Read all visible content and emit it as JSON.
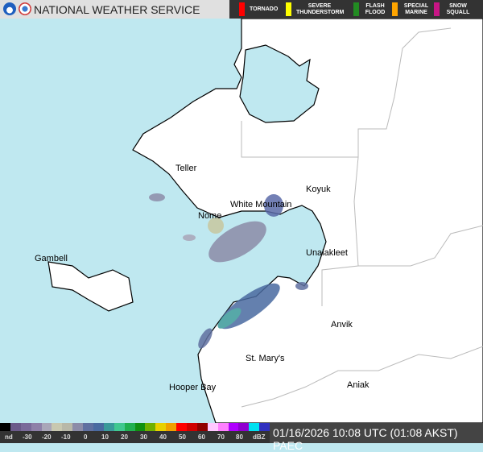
{
  "header": {
    "title": "NATIONAL WEATHER SERVICE",
    "logos": [
      "noaa-logo",
      "nws-logo"
    ]
  },
  "warning_legend": [
    {
      "label": "TORNADO",
      "color": "#ff0000"
    },
    {
      "label": "SEVERE THUNDERSTORM",
      "color": "#ffff00"
    },
    {
      "label": "FLASH FLOOD",
      "color": "#228b22"
    },
    {
      "label": "SPECIAL MARINE",
      "color": "#ffa500"
    },
    {
      "label": "SNOW SQUALL",
      "color": "#c71585"
    }
  ],
  "colors": {
    "ocean": "#bfe8f0",
    "land": "#ffffff"
  },
  "cities": [
    "Teller",
    "Nome",
    "White Mountain",
    "Koyuk",
    "Unalakleet",
    "Gambell",
    "Anvik",
    "St. Mary's",
    "Hooper Bay",
    "Aniak"
  ],
  "scale": {
    "ticks": [
      "nd",
      "-30",
      "-20",
      "-10",
      "0",
      "10",
      "20",
      "30",
      "40",
      "50",
      "60",
      "70",
      "80",
      "dBZ"
    ],
    "colors": [
      "#000000",
      "#6b5a8a",
      "#7a6a9a",
      "#8e80a8",
      "#a9a6b8",
      "#c8c8b0",
      "#b8b8a8",
      "#8c8ca8",
      "#6070a0",
      "#4a6aa0",
      "#3a9a9a",
      "#40c890",
      "#20b050",
      "#109010",
      "#70b000",
      "#e8d000",
      "#f0a000",
      "#ff0000",
      "#d00000",
      "#900000",
      "#ffc8ff",
      "#ff80ff",
      "#b000ff",
      "#9000d0",
      "#00e0f0",
      "#3030c0"
    ]
  },
  "timestamp": "01/16/2026 10:08 UTC (01:08 AKST)",
  "station": "PAEC"
}
